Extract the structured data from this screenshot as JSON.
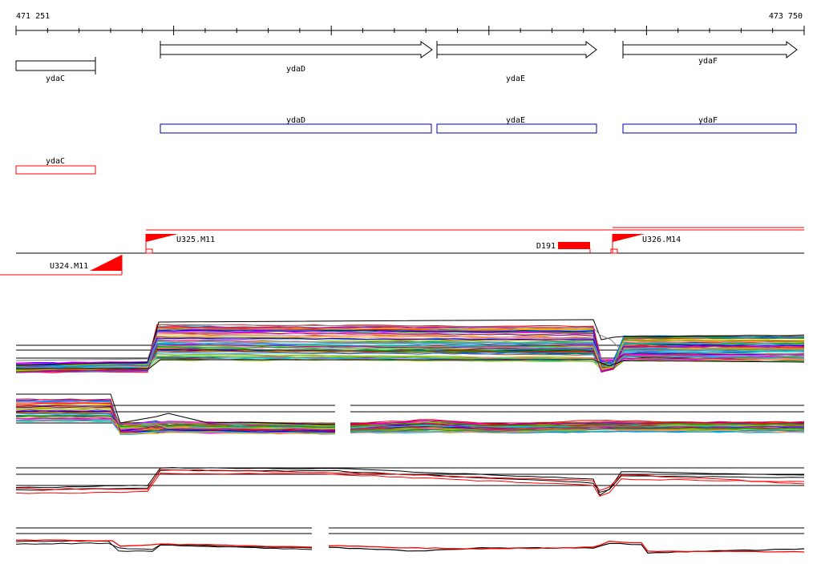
{
  "ruler": {
    "start_label": "471 251",
    "end_label": "473 750",
    "start": 471251,
    "end": 473750
  },
  "genes_strand": [
    {
      "name": "ydaC"
    },
    {
      "name": "ydaD"
    },
    {
      "name": "ydaE"
    },
    {
      "name": "ydaF"
    }
  ],
  "genes_annotated": [
    {
      "name": "ydaD"
    },
    {
      "name": "ydaE"
    },
    {
      "name": "ydaF"
    },
    {
      "name": "ydaC"
    }
  ],
  "features": [
    {
      "name": "U325.M11"
    },
    {
      "name": "D191"
    },
    {
      "name": "U326.M14"
    },
    {
      "name": "U324.M11"
    }
  ],
  "colors": {
    "outline": "#000000",
    "annotation": "#0000aa",
    "feature": "#ff0000",
    "black_track": "#000000",
    "red_track": "#ff0000"
  },
  "expression_palette": [
    "#ff0000",
    "#00aa00",
    "#0000ff",
    "#ff00ff",
    "#00cccc",
    "#ffaa00",
    "#888888",
    "#aa00aa",
    "#88cc00",
    "#0088ff",
    "#aa5500",
    "#ff8888"
  ]
}
